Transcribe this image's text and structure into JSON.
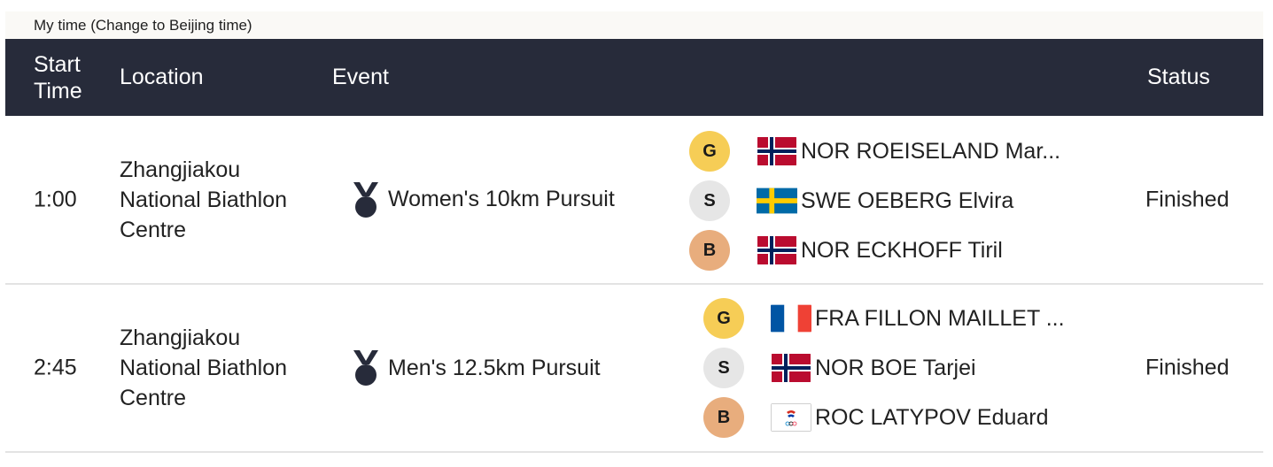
{
  "timebar": {
    "text": "My time (Change to Beijing time)"
  },
  "header": {
    "start_line1": "Start",
    "start_line2": "Time",
    "location": "Location",
    "event": "Event",
    "status": "Status"
  },
  "colors": {
    "header_bg": "#272b3a",
    "gold": "#f6cd56",
    "silver": "#e6e6e6",
    "bronze": "#e8ad7d"
  },
  "rows": [
    {
      "time": "1:00",
      "location_lines": [
        "Zhangjiakou",
        "National Biathlon",
        "Centre"
      ],
      "event_icon": "medal-icon",
      "event": "Women's 10km Pursuit",
      "status": "Finished",
      "medals": [
        {
          "badge": "G",
          "flag": "norway-flag-icon",
          "athlete": "NOR ROEISELAND Mar..."
        },
        {
          "badge": "S",
          "flag": "sweden-flag-icon",
          "athlete": "SWE OEBERG Elvira"
        },
        {
          "badge": "B",
          "flag": "norway-flag-icon",
          "athlete": "NOR ECKHOFF Tiril"
        }
      ]
    },
    {
      "time": "2:45",
      "location_lines": [
        "Zhangjiakou",
        "National Biathlon",
        "Centre"
      ],
      "event_icon": "medal-icon",
      "event": "Men's 12.5km Pursuit",
      "status": "Finished",
      "medals": [
        {
          "badge": "G",
          "flag": "france-flag-icon",
          "athlete": "FRA FILLON MAILLET ..."
        },
        {
          "badge": "S",
          "flag": "norway-flag-icon",
          "athlete": "NOR BOE Tarjei"
        },
        {
          "badge": "B",
          "flag": "roc-flag-icon",
          "athlete": "ROC LATYPOV Eduard"
        }
      ]
    }
  ]
}
